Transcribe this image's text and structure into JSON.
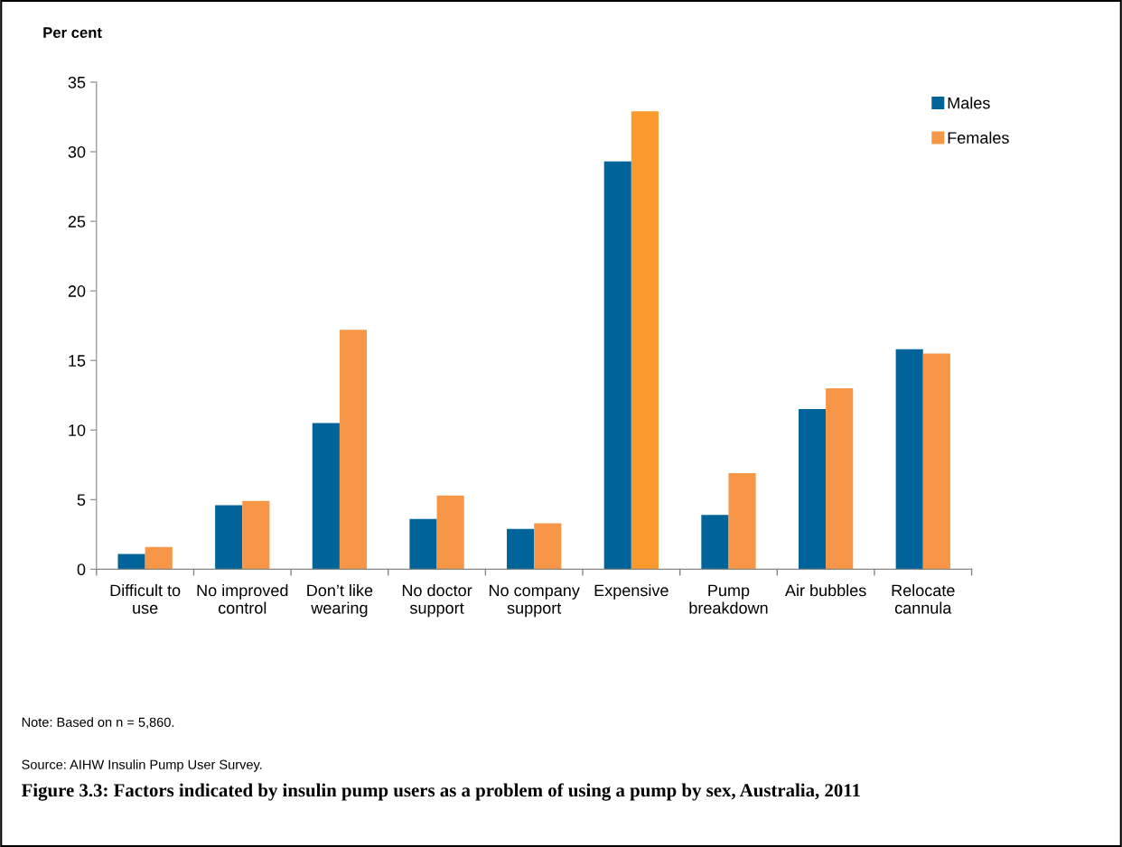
{
  "chart_data": {
    "type": "bar",
    "title": "Figure 3.3: Factors indicated by insulin pump users as a problem of using a pump by sex, Australia, 2011",
    "ylabel": "Per cent",
    "categories": [
      "Difficult to use",
      "No improved control",
      "Don’t like wearing",
      "No doctor support",
      "No company support",
      "Expensive",
      "Pump breakdown",
      "Air bubbles",
      "Relocate cannula"
    ],
    "series": [
      {
        "name": "Males",
        "color": "#00649a",
        "values": [
          1.1,
          4.6,
          10.5,
          3.6,
          2.9,
          29.3,
          3.9,
          11.5,
          15.8
        ]
      },
      {
        "name": "Females",
        "color": "#f79646",
        "colors": [
          "#f79646",
          "#f79646",
          "#f79646",
          "#f79646",
          "#f79646",
          "#fb9a2c",
          "#f79646",
          "#f79646",
          "#f79646"
        ],
        "values": [
          1.6,
          4.9,
          17.2,
          5.3,
          3.3,
          32.9,
          6.9,
          13.0,
          15.5
        ]
      }
    ],
    "ylim": [
      0,
      35
    ],
    "yticks": [
      0,
      5,
      10,
      15,
      20,
      25,
      30,
      35
    ],
    "grid": false,
    "legend": "top right",
    "annotations": [
      "Note: Based on n = 5,860.",
      "Source: AIHW Insulin Pump User Survey."
    ]
  }
}
